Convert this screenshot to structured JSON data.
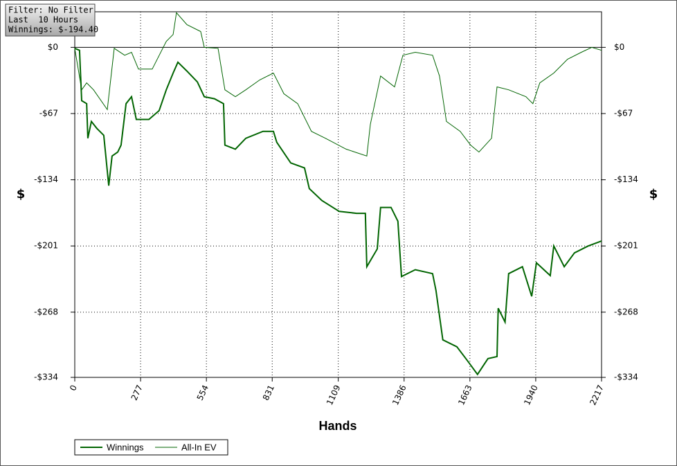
{
  "chart_data": {
    "type": "line",
    "info": [
      "Filter: No Filter",
      "Last  10 Hours",
      "Winnings: $-194.40"
    ],
    "xlabel": "Hands",
    "ylabel": "$",
    "xlim": [
      0,
      2217
    ],
    "xticks": [
      0,
      277,
      554,
      831,
      1109,
      1386,
      1663,
      1940,
      2217
    ],
    "ylim": [
      -334,
      36
    ],
    "yticks": [
      {
        "value": 0,
        "label": "$0"
      },
      {
        "value": -67,
        "label": "-$67"
      },
      {
        "value": -134,
        "label": "-$134"
      },
      {
        "value": -201,
        "label": "-$201"
      },
      {
        "value": -268,
        "label": "-$268"
      },
      {
        "value": -334,
        "label": "-$334"
      }
    ],
    "grid": true,
    "series": [
      {
        "name": "Winnings",
        "color": "#006400",
        "width": 2,
        "x": [
          0,
          20,
          29,
          50,
          55,
          70,
          93,
          122,
          143,
          157,
          181,
          195,
          216,
          239,
          259,
          312,
          355,
          385,
          414,
          434,
          472,
          516,
          545,
          588,
          626,
          632,
          676,
          720,
          792,
          836,
          850,
          909,
          967,
          987,
          1040,
          1113,
          1186,
          1223,
          1229,
          1273,
          1287,
          1331,
          1360,
          1375,
          1433,
          1506,
          1520,
          1549,
          1608,
          1652,
          1695,
          1739,
          1777,
          1782,
          1811,
          1826,
          1884,
          1923,
          1943,
          2001,
          2016,
          2060,
          2103,
          2161,
          2217
        ],
        "values": [
          -1,
          -3,
          -54,
          -57,
          -92,
          -75,
          -82,
          -89,
          -140,
          -110,
          -106,
          -99,
          -57,
          -50,
          -73,
          -73,
          -64,
          -43,
          -26,
          -15,
          -24,
          -35,
          -50,
          -52,
          -57,
          -99,
          -103,
          -92,
          -85,
          -85,
          -96,
          -117,
          -122,
          -143,
          -155,
          -166,
          -168,
          -168,
          -222,
          -204,
          -162,
          -162,
          -176,
          -232,
          -225,
          -229,
          -246,
          -296,
          -303,
          -317,
          -331,
          -315,
          -313,
          -264,
          -278,
          -229,
          -222,
          -252,
          -218,
          -231,
          -201,
          -222,
          -208,
          -201,
          -196
        ]
      },
      {
        "name": "All-In EV",
        "color": "#006400",
        "width": 1,
        "x": [
          0,
          29,
          50,
          79,
          137,
          166,
          210,
          239,
          268,
          326,
          385,
          414,
          428,
          472,
          530,
          545,
          603,
          632,
          676,
          720,
          778,
          836,
          880,
          938,
          996,
          1055,
          1142,
          1229,
          1244,
          1287,
          1346,
          1381,
          1433,
          1506,
          1535,
          1564,
          1622,
          1666,
          1701,
          1754,
          1777,
          1826,
          1899,
          1928,
          1957,
          2016,
          2074,
          2132,
          2176,
          2217
        ],
        "values": [
          -1,
          -43,
          -36,
          -43,
          -63,
          -1,
          -8,
          -5,
          -22,
          -22,
          6,
          13,
          35,
          23,
          16,
          0,
          -1,
          -43,
          -50,
          -43,
          -33,
          -26,
          -47,
          -57,
          -85,
          -92,
          -103,
          -110,
          -78,
          -29,
          -40,
          -8,
          -5,
          -8,
          -29,
          -75,
          -85,
          -99,
          -106,
          -92,
          -40,
          -43,
          -50,
          -57,
          -36,
          -26,
          -12,
          -5,
          0,
          -3
        ]
      }
    ]
  }
}
